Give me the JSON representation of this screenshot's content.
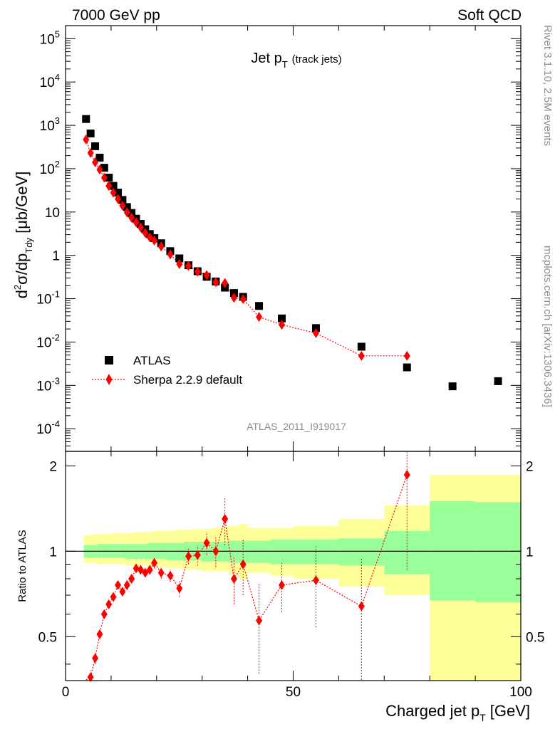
{
  "header": {
    "left": "7000 GeV pp",
    "right": "Soft QCD"
  },
  "side_text": {
    "rivet": "Rivet 3.1.10,  2.5M events",
    "mcplots": "mcplots.cern.ch [arXiv:1306.3436]"
  },
  "chart_data": [
    {
      "type": "scatter",
      "title": "Jet p_T (track jets)",
      "title_main": "Jet p",
      "title_sub": "T",
      "title_note": "(track jets)",
      "watermark": "ATLAS_2011_I919017",
      "ylabel": "d²σ/dp_Tdy [μb/GeV]",
      "y_scale": "log",
      "ylim": [
        3e-05,
        200000
      ],
      "xlim": [
        0,
        100
      ],
      "yticks": [
        {
          "v": 100000,
          "t": "10",
          "e": "5"
        },
        {
          "v": 10000,
          "t": "10",
          "e": "4"
        },
        {
          "v": 1000,
          "t": "10",
          "e": "3"
        },
        {
          "v": 100,
          "t": "10",
          "e": "2"
        },
        {
          "v": 10,
          "t": "10",
          "e": ""
        },
        {
          "v": 1,
          "t": "1",
          "e": ""
        },
        {
          "v": 0.1,
          "t": "10",
          "e": "-1"
        },
        {
          "v": 0.01,
          "t": "10",
          "e": "-2"
        },
        {
          "v": 0.001,
          "t": "10",
          "e": "-3"
        },
        {
          "v": 0.0001,
          "t": "10",
          "e": "-4"
        }
      ],
      "legend_position": "bottom-left",
      "series": [
        {
          "name": "ATLAS",
          "marker": "square",
          "color": "#000000",
          "x": [
            4.5,
            5.5,
            6.5,
            7.5,
            8.5,
            9.5,
            10.5,
            11.5,
            12.5,
            13.5,
            14.5,
            15.5,
            16.5,
            17.5,
            18.5,
            19.5,
            21,
            23,
            25,
            27,
            29,
            31,
            33,
            35,
            37,
            39,
            42.5,
            47.5,
            55,
            65,
            75,
            85,
            95
          ],
          "y": [
            1400,
            650,
            330,
            180,
            105,
            62,
            40,
            28,
            19,
            13,
            9.5,
            7,
            5.3,
            4,
            3.1,
            2.5,
            1.9,
            1.25,
            0.85,
            0.59,
            0.43,
            0.32,
            0.25,
            0.18,
            0.135,
            0.11,
            0.068,
            0.035,
            0.021,
            0.0078,
            0.0026,
            0.00095,
            0.00125
          ]
        },
        {
          "name": "Sherpa 2.2.9 default",
          "marker": "diamond",
          "line": "dotted",
          "color": "#ff0000",
          "x": [
            4.5,
            5.5,
            6.5,
            7.5,
            8.5,
            9.5,
            10.5,
            11.5,
            12.5,
            13.5,
            14.5,
            15.5,
            16.5,
            17.5,
            18.5,
            19.5,
            21,
            23,
            25,
            27,
            29,
            31,
            33,
            35,
            37,
            39,
            42.5,
            47.5,
            55,
            65,
            75
          ],
          "y": [
            470,
            230,
            140,
            95,
            62,
            40,
            28,
            20,
            14,
            9.8,
            7.4,
            5.8,
            4.4,
            3.3,
            2.6,
            2.2,
            1.6,
            1.05,
            0.63,
            0.57,
            0.42,
            0.35,
            0.24,
            0.23,
            0.105,
            0.098,
            0.038,
            0.025,
            0.016,
            0.0048,
            0.0048
          ]
        }
      ]
    },
    {
      "type": "scatter",
      "ylabel": "Ratio to ATLAS",
      "xlabel": "Charged jet p_T [GeV]",
      "xlabel_main": "Charged jet p",
      "xlabel_sub": "T",
      "xlabel_unit": "[GeV]",
      "xlim": [
        0,
        100
      ],
      "ylim": [
        0.35,
        2.25
      ],
      "xticks": [
        0,
        50,
        100
      ],
      "yticks": [
        0.5,
        1,
        2
      ],
      "reference_line": 1,
      "band_colors": {
        "inner": "#99ff99",
        "outer": "#ffff99"
      },
      "bands": [
        {
          "x0": 4,
          "x1": 5,
          "inner": [
            0.95,
            1.05
          ],
          "outer": [
            0.91,
            1.14
          ]
        },
        {
          "x0": 5,
          "x1": 6,
          "inner": [
            0.95,
            1.05
          ],
          "outer": [
            0.91,
            1.14
          ]
        },
        {
          "x0": 6,
          "x1": 7,
          "inner": [
            0.95,
            1.05
          ],
          "outer": [
            0.91,
            1.15
          ]
        },
        {
          "x0": 7,
          "x1": 8,
          "inner": [
            0.95,
            1.06
          ],
          "outer": [
            0.9,
            1.15
          ]
        },
        {
          "x0": 8,
          "x1": 9,
          "inner": [
            0.95,
            1.06
          ],
          "outer": [
            0.9,
            1.15
          ]
        },
        {
          "x0": 9,
          "x1": 10,
          "inner": [
            0.95,
            1.06
          ],
          "outer": [
            0.9,
            1.15
          ]
        },
        {
          "x0": 10,
          "x1": 11,
          "inner": [
            0.95,
            1.06
          ],
          "outer": [
            0.9,
            1.16
          ]
        },
        {
          "x0": 11,
          "x1": 12,
          "inner": [
            0.95,
            1.06
          ],
          "outer": [
            0.9,
            1.16
          ]
        },
        {
          "x0": 12,
          "x1": 13,
          "inner": [
            0.95,
            1.06
          ],
          "outer": [
            0.9,
            1.16
          ]
        },
        {
          "x0": 13,
          "x1": 14,
          "inner": [
            0.94,
            1.06
          ],
          "outer": [
            0.89,
            1.16
          ]
        },
        {
          "x0": 14,
          "x1": 15,
          "inner": [
            0.94,
            1.06
          ],
          "outer": [
            0.89,
            1.16
          ]
        },
        {
          "x0": 15,
          "x1": 16,
          "inner": [
            0.94,
            1.06
          ],
          "outer": [
            0.89,
            1.17
          ]
        },
        {
          "x0": 16,
          "x1": 17,
          "inner": [
            0.94,
            1.06
          ],
          "outer": [
            0.89,
            1.17
          ]
        },
        {
          "x0": 17,
          "x1": 18,
          "inner": [
            0.94,
            1.06
          ],
          "outer": [
            0.89,
            1.17
          ]
        },
        {
          "x0": 18,
          "x1": 19,
          "inner": [
            0.94,
            1.07
          ],
          "outer": [
            0.88,
            1.17
          ]
        },
        {
          "x0": 19,
          "x1": 20,
          "inner": [
            0.94,
            1.07
          ],
          "outer": [
            0.88,
            1.18
          ]
        },
        {
          "x0": 20,
          "x1": 22,
          "inner": [
            0.94,
            1.07
          ],
          "outer": [
            0.88,
            1.18
          ]
        },
        {
          "x0": 22,
          "x1": 24,
          "inner": [
            0.93,
            1.07
          ],
          "outer": [
            0.87,
            1.18
          ]
        },
        {
          "x0": 24,
          "x1": 26,
          "inner": [
            0.93,
            1.07
          ],
          "outer": [
            0.87,
            1.19
          ]
        },
        {
          "x0": 26,
          "x1": 28,
          "inner": [
            0.93,
            1.08
          ],
          "outer": [
            0.86,
            1.19
          ]
        },
        {
          "x0": 28,
          "x1": 30,
          "inner": [
            0.93,
            1.08
          ],
          "outer": [
            0.86,
            1.2
          ]
        },
        {
          "x0": 30,
          "x1": 32,
          "inner": [
            0.92,
            1.08
          ],
          "outer": [
            0.85,
            1.2
          ]
        },
        {
          "x0": 32,
          "x1": 34,
          "inner": [
            0.92,
            1.08
          ],
          "outer": [
            0.85,
            1.21
          ]
        },
        {
          "x0": 34,
          "x1": 36,
          "inner": [
            0.92,
            1.08
          ],
          "outer": [
            0.85,
            1.22
          ]
        },
        {
          "x0": 36,
          "x1": 38,
          "inner": [
            0.91,
            1.09
          ],
          "outer": [
            0.83,
            1.23
          ]
        },
        {
          "x0": 38,
          "x1": 40,
          "inner": [
            0.91,
            1.09
          ],
          "outer": [
            0.8,
            1.25
          ]
        },
        {
          "x0": 40,
          "x1": 45,
          "inner": [
            0.91,
            1.09
          ],
          "outer": [
            0.84,
            1.21
          ]
        },
        {
          "x0": 45,
          "x1": 50,
          "inner": [
            0.9,
            1.1
          ],
          "outer": [
            0.82,
            1.21
          ]
        },
        {
          "x0": 50,
          "x1": 60,
          "inner": [
            0.9,
            1.1
          ],
          "outer": [
            0.8,
            1.23
          ]
        },
        {
          "x0": 60,
          "x1": 70,
          "inner": [
            0.89,
            1.11
          ],
          "outer": [
            0.75,
            1.3
          ]
        },
        {
          "x0": 70,
          "x1": 80,
          "inner": [
            0.83,
            1.18
          ],
          "outer": [
            0.7,
            1.45
          ]
        },
        {
          "x0": 80,
          "x1": 90,
          "inner": [
            0.67,
            1.5
          ],
          "outer": [
            0.35,
            1.86
          ]
        },
        {
          "x0": 90,
          "x1": 100,
          "inner": [
            0.66,
            1.49
          ],
          "outer": [
            0.35,
            1.86
          ]
        }
      ],
      "series": [
        {
          "name": "Sherpa 2.2.9 default",
          "marker": "diamond",
          "line": "dotted",
          "color": "#ff0000",
          "x": [
            4.5,
            5.5,
            6.5,
            7.5,
            8.5,
            9.5,
            10.5,
            11.5,
            12.5,
            13.5,
            14.5,
            15.5,
            16.5,
            17.5,
            18.5,
            19.5,
            21,
            23,
            25,
            27,
            29,
            31,
            33,
            35,
            37,
            39,
            42.5,
            47.5,
            55,
            65,
            75
          ],
          "y": [
            0.33,
            0.36,
            0.42,
            0.51,
            0.6,
            0.65,
            0.69,
            0.76,
            0.72,
            0.76,
            0.8,
            0.87,
            0.86,
            0.84,
            0.86,
            0.91,
            0.84,
            0.82,
            0.74,
            0.96,
            0.97,
            1.07,
            1.0,
            1.3,
            0.8,
            0.9,
            0.57,
            0.76,
            0.79,
            0.64,
            1.86
          ],
          "err": [
            0.02,
            0.02,
            0.02,
            0.02,
            0.02,
            0.02,
            0.02,
            0.02,
            0.02,
            0.03,
            0.03,
            0.03,
            0.03,
            0.03,
            0.03,
            0.04,
            0.04,
            0.04,
            0.05,
            0.06,
            0.08,
            0.1,
            0.12,
            0.25,
            0.15,
            0.2,
            0.2,
            0.15,
            0.25,
            0.3,
            1.0
          ]
        }
      ]
    }
  ]
}
